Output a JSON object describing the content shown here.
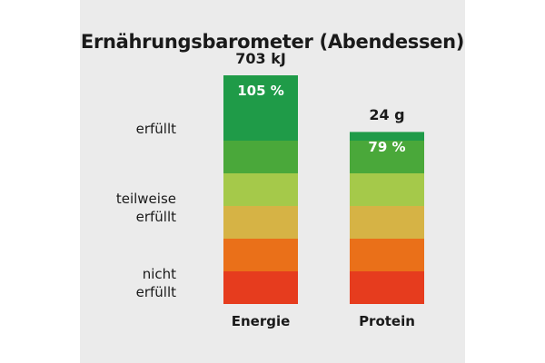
{
  "chart_data": {
    "type": "bar",
    "title": "Ernährungsbarometer (Abendessen)",
    "categories": [
      "Energie",
      "Protein"
    ],
    "values_percent": [
      105,
      79
    ],
    "value_labels": [
      "105 %",
      "79 %"
    ],
    "amounts": [
      "703 kJ",
      "24 g"
    ],
    "ylim": [
      0,
      105
    ],
    "scale_labels": {
      "high": "erfüllt",
      "mid_line1": "teilweise",
      "mid_line2": "erfüllt",
      "low_line1": "nicht",
      "low_line2": "erfüllt"
    },
    "band_colors": [
      "#e63c1e",
      "#ea7019",
      "#d6b345",
      "#a5c94a",
      "#4aa83a",
      "#1f9b48"
    ],
    "band_upper_limits": [
      15,
      30,
      45,
      60,
      75,
      105
    ]
  }
}
